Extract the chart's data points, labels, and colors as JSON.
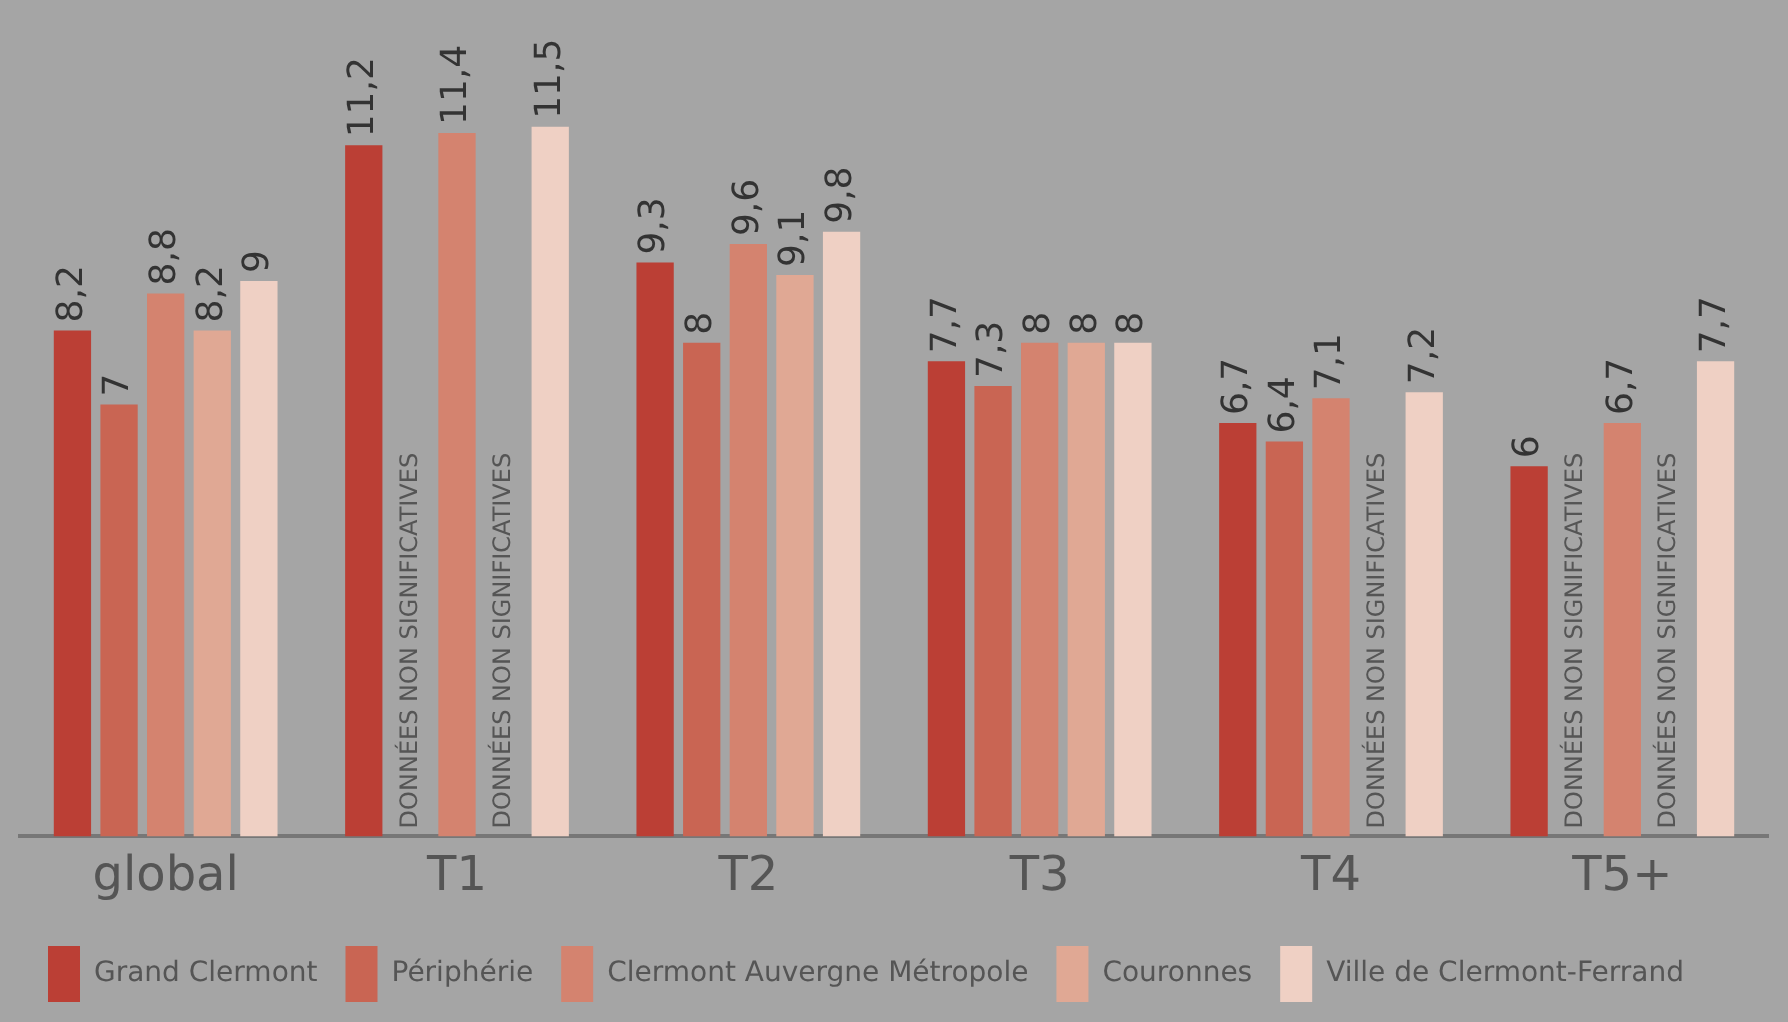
{
  "chart_data": {
    "type": "bar",
    "categories": [
      "global",
      "T1",
      "T2",
      "T3",
      "T4",
      "T5+"
    ],
    "series": [
      {
        "name": "Grand Clermont",
        "color": "#bb3f35",
        "values": [
          8.2,
          11.2,
          9.3,
          7.7,
          6.7,
          6
        ],
        "value_labels": [
          "8,2",
          "11,2",
          "9,3",
          "7,7",
          "6,7",
          "6"
        ]
      },
      {
        "name": "Périphérie",
        "color": "#c96553",
        "values": [
          7,
          null,
          8,
          7.3,
          6.4,
          null
        ],
        "value_labels": [
          "7",
          null,
          "8",
          "7,3",
          "6,4",
          null
        ]
      },
      {
        "name": "Clermont Auvergne Métropole",
        "color": "#d4836f",
        "values": [
          8.8,
          11.4,
          9.6,
          8,
          7.1,
          6.7
        ],
        "value_labels": [
          "8,8",
          "11,4",
          "9,6",
          "8",
          "7,1",
          "6,7"
        ]
      },
      {
        "name": "Couronnes",
        "color": "#e0a894",
        "values": [
          8.2,
          null,
          9.1,
          8,
          null,
          null
        ],
        "value_labels": [
          "8,2",
          null,
          "9,1",
          "8",
          null,
          null
        ]
      },
      {
        "name": "Ville de Clermont-Ferrand",
        "color": "#efd0c4",
        "values": [
          9,
          11.5,
          9.8,
          8,
          7.2,
          7.7
        ],
        "value_labels": [
          "9",
          "11,5",
          "9,8",
          "8",
          "7,2",
          "7,7"
        ]
      }
    ],
    "annotations": [
      "DONNÉES NON SIGNIFICATIVES",
      "DONNÉES NON SIGNIFICATIVES",
      "DONNÉES NON SIGNIFICATIVES",
      "DONNÉES NON SIGNIFICATIVES",
      "DONNÉES NON SIGNIFICATIVES"
    ],
    "grid": false,
    "legend": "bottom"
  }
}
